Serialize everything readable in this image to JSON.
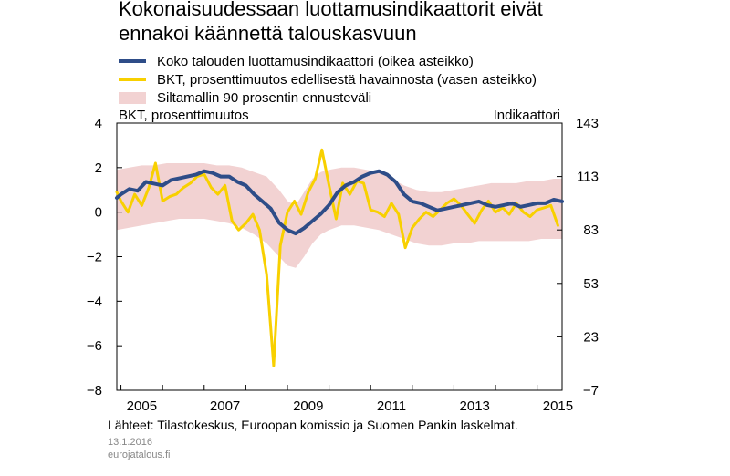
{
  "title_lines": [
    "Kokonaisuudessaan luottamusindikaattorit eivät",
    "ennakoi käännettä talouskasvuun"
  ],
  "legend": [
    {
      "label": "Koko talouden luottamusindikaattori (oikea asteikko)",
      "kind": "line",
      "color": "#2e4d88"
    },
    {
      "label": "BKT, prosenttimuutos edellisestä havainnosta (vasen asteikko)",
      "kind": "line",
      "color": "#f8d000"
    },
    {
      "label": "Siltamallin 90 prosentin ennusteväli",
      "kind": "band",
      "color": "#f2d2d2"
    }
  ],
  "source": "Lähteet: Tilastokeskus, Euroopan komissio ja Suomen Pankin laskelmat.",
  "date": "13.1.2016",
  "site": "eurojatalous.fi",
  "chart_data": {
    "type": "line",
    "left_axis_label": "BKT, prosenttimuutos",
    "right_axis_label": "Indikaattori",
    "y_left_ticks": [
      "4",
      "2",
      "0",
      "−2",
      "−4",
      "−6",
      "−8"
    ],
    "y_right_ticks": [
      "143",
      "113",
      "83",
      "53",
      "23",
      "−7"
    ],
    "x_ticks": [
      "2005",
      "2007",
      "2009",
      "2011",
      "2013",
      "2015"
    ],
    "ylim_left": [
      -8,
      4
    ],
    "ylim_right": [
      -7,
      143
    ],
    "xlim": [
      2004.9,
      2015.6
    ],
    "band": {
      "name": "Siltamallin 90 prosentin ennusteväli",
      "x": [
        2004.9,
        2005.2,
        2005.5,
        2005.8,
        2006.1,
        2006.4,
        2006.7,
        2007.0,
        2007.3,
        2007.6,
        2007.9,
        2008.2,
        2008.5,
        2008.8,
        2009.0,
        2009.2,
        2009.4,
        2009.6,
        2009.8,
        2010.0,
        2010.3,
        2010.6,
        2010.9,
        2011.2,
        2011.5,
        2011.8,
        2012.1,
        2012.4,
        2012.7,
        2013.0,
        2013.3,
        2013.6,
        2013.9,
        2014.2,
        2014.5,
        2014.8,
        2015.1,
        2015.4,
        2015.6
      ],
      "upper": [
        1.9,
        2.0,
        2.1,
        2.1,
        2.2,
        2.2,
        2.2,
        2.2,
        2.1,
        2.1,
        2.0,
        1.8,
        1.6,
        1.0,
        0.5,
        0.3,
        0.9,
        1.5,
        1.8,
        1.9,
        2.0,
        2.0,
        1.9,
        1.8,
        1.5,
        1.2,
        1.0,
        0.9,
        0.9,
        1.0,
        1.1,
        1.2,
        1.3,
        1.3,
        1.3,
        1.4,
        1.4,
        1.5,
        1.5
      ],
      "lower": [
        -0.8,
        -0.7,
        -0.6,
        -0.5,
        -0.4,
        -0.3,
        -0.3,
        -0.3,
        -0.4,
        -0.5,
        -0.7,
        -1.0,
        -1.4,
        -2.0,
        -2.4,
        -2.5,
        -2.0,
        -1.4,
        -1.0,
        -0.8,
        -0.6,
        -0.6,
        -0.7,
        -0.8,
        -1.0,
        -1.2,
        -1.4,
        -1.5,
        -1.5,
        -1.4,
        -1.4,
        -1.3,
        -1.3,
        -1.3,
        -1.3,
        -1.3,
        -1.2,
        -1.2,
        -1.2
      ]
    },
    "series": [
      {
        "key": "bkt",
        "color": "#f8d000",
        "axis": "left",
        "x": [
          2004.9,
          2005.0,
          2005.17,
          2005.33,
          2005.5,
          2005.67,
          2005.83,
          2006.0,
          2006.17,
          2006.33,
          2006.5,
          2006.67,
          2006.83,
          2007.0,
          2007.17,
          2007.33,
          2007.5,
          2007.67,
          2007.83,
          2008.0,
          2008.17,
          2008.33,
          2008.5,
          2008.67,
          2008.83,
          2009.0,
          2009.17,
          2009.33,
          2009.5,
          2009.67,
          2009.83,
          2010.0,
          2010.17,
          2010.33,
          2010.5,
          2010.67,
          2010.83,
          2011.0,
          2011.17,
          2011.33,
          2011.5,
          2011.67,
          2011.83,
          2012.0,
          2012.17,
          2012.33,
          2012.5,
          2012.67,
          2012.83,
          2013.0,
          2013.17,
          2013.33,
          2013.5,
          2013.67,
          2013.83,
          2014.0,
          2014.17,
          2014.33,
          2014.5,
          2014.67,
          2014.83,
          2015.0,
          2015.17,
          2015.33,
          2015.5
        ],
        "y": [
          0.9,
          0.5,
          0.0,
          0.8,
          0.3,
          1.1,
          2.2,
          0.5,
          0.7,
          0.8,
          1.1,
          1.3,
          1.6,
          1.7,
          1.1,
          0.8,
          1.2,
          -0.4,
          -0.8,
          -0.5,
          -0.1,
          -0.8,
          -2.8,
          -6.9,
          -1.5,
          0.0,
          0.5,
          -0.1,
          0.9,
          1.5,
          2.8,
          1.2,
          -0.3,
          1.3,
          0.8,
          1.4,
          1.3,
          0.1,
          0.0,
          -0.2,
          0.4,
          -0.1,
          -1.6,
          -0.7,
          -0.3,
          0.0,
          -0.2,
          0.1,
          0.4,
          0.6,
          0.3,
          -0.1,
          -0.5,
          0.1,
          0.5,
          0.0,
          0.2,
          -0.1,
          0.4,
          0.0,
          -0.2,
          0.1,
          0.2,
          0.3,
          -0.6
        ]
      },
      {
        "key": "luottamus",
        "color": "#2e4d88",
        "axis": "right",
        "x": [
          2004.9,
          2005.0,
          2005.2,
          2005.4,
          2005.6,
          2005.8,
          2006.0,
          2006.2,
          2006.4,
          2006.6,
          2006.8,
          2007.0,
          2007.2,
          2007.4,
          2007.6,
          2007.8,
          2008.0,
          2008.2,
          2008.4,
          2008.6,
          2008.8,
          2009.0,
          2009.2,
          2009.4,
          2009.6,
          2009.8,
          2010.0,
          2010.2,
          2010.4,
          2010.6,
          2010.8,
          2011.0,
          2011.2,
          2011.4,
          2011.6,
          2011.8,
          2012.0,
          2012.2,
          2012.4,
          2012.6,
          2012.8,
          2013.0,
          2013.2,
          2013.4,
          2013.6,
          2013.8,
          2014.0,
          2014.2,
          2014.4,
          2014.6,
          2014.8,
          2015.0,
          2015.2,
          2015.4,
          2015.6
        ],
        "y": [
          101,
          103,
          106,
          105,
          110,
          109,
          108,
          111,
          112,
          113,
          114,
          116,
          115,
          113,
          113,
          110,
          108,
          103,
          99,
          95,
          87,
          83,
          81,
          84,
          88,
          92,
          97,
          104,
          108,
          110,
          113,
          115,
          116,
          114,
          110,
          103,
          99,
          98,
          96,
          94,
          95,
          96,
          97,
          98,
          99,
          97,
          96,
          97,
          98,
          96,
          97,
          98,
          98,
          100,
          99
        ]
      }
    ]
  }
}
